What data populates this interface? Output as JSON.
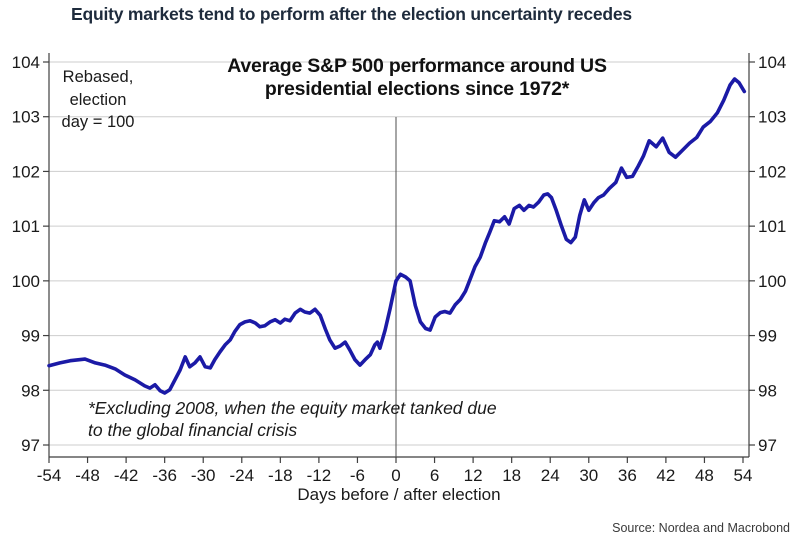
{
  "page": {
    "headline": "Equity markets tend to perform after the election uncertainty recedes",
    "source": "Source: Nordea and Macrobond"
  },
  "chart_data": {
    "type": "line",
    "title": "Average S&P 500 performance around US presidential elections since 1972*",
    "title_line1": "Average S&P 500 performance around US",
    "title_line2": "presidential elections since 1972*",
    "rebased_note_line1": "Rebased,",
    "rebased_note_line2": "election",
    "rebased_note_line3": "day = 100",
    "footnote_line1": "*Excluding 2008, when the equity market tanked due",
    "footnote_line2": "to the global financial crisis",
    "xlabel": "Days before / after election",
    "ylabel": "",
    "x_ticks": [
      -54,
      -48,
      -42,
      -36,
      -30,
      -24,
      -18,
      -12,
      -6,
      0,
      6,
      12,
      18,
      24,
      30,
      36,
      42,
      48,
      54
    ],
    "y_ticks": [
      97,
      98,
      99,
      100,
      101,
      102,
      103,
      104
    ],
    "xlim": [
      -54,
      55
    ],
    "ylim": [
      96.8,
      104.16
    ],
    "grid": true,
    "legend_position": "none",
    "line_color": "#1b1aa6",
    "election_day_x": 0,
    "series": [
      {
        "name": "Average S&P 500 performance (rebased, election day = 100)",
        "points": [
          [
            -54,
            98.45
          ],
          [
            -52.3,
            98.5
          ],
          [
            -50.7,
            98.54
          ],
          [
            -48.4,
            98.57
          ],
          [
            -46.8,
            98.5
          ],
          [
            -45.3,
            98.46
          ],
          [
            -43.7,
            98.39
          ],
          [
            -42.2,
            98.28
          ],
          [
            -40.6,
            98.19
          ],
          [
            -39.1,
            98.08
          ],
          [
            -38.3,
            98.04
          ],
          [
            -37.5,
            98.1
          ],
          [
            -36.7,
            97.99
          ],
          [
            -36,
            97.95
          ],
          [
            -35.2,
            98.01
          ],
          [
            -34.4,
            98.19
          ],
          [
            -33.6,
            98.37
          ],
          [
            -32.8,
            98.61
          ],
          [
            -32.1,
            98.43
          ],
          [
            -31.3,
            98.5
          ],
          [
            -30.5,
            98.61
          ],
          [
            -29.7,
            98.43
          ],
          [
            -28.9,
            98.41
          ],
          [
            -28.2,
            98.56
          ],
          [
            -27.4,
            98.7
          ],
          [
            -26.6,
            98.83
          ],
          [
            -25.8,
            98.92
          ],
          [
            -25.1,
            99.07
          ],
          [
            -24.3,
            99.2
          ],
          [
            -23.5,
            99.25
          ],
          [
            -22.7,
            99.27
          ],
          [
            -21.9,
            99.23
          ],
          [
            -21.2,
            99.16
          ],
          [
            -20.4,
            99.18
          ],
          [
            -19.6,
            99.25
          ],
          [
            -18.8,
            99.29
          ],
          [
            -18,
            99.23
          ],
          [
            -17.3,
            99.3
          ],
          [
            -16.5,
            99.27
          ],
          [
            -15.7,
            99.41
          ],
          [
            -14.9,
            99.48
          ],
          [
            -14.2,
            99.43
          ],
          [
            -13.4,
            99.41
          ],
          [
            -12.6,
            99.48
          ],
          [
            -11.8,
            99.37
          ],
          [
            -11,
            99.12
          ],
          [
            -10.3,
            98.92
          ],
          [
            -9.5,
            98.77
          ],
          [
            -8.7,
            98.81
          ],
          [
            -7.9,
            98.88
          ],
          [
            -7.2,
            98.74
          ],
          [
            -6.4,
            98.56
          ],
          [
            -5.6,
            98.46
          ],
          [
            -4.8,
            98.56
          ],
          [
            -4,
            98.65
          ],
          [
            -3.3,
            98.83
          ],
          [
            -2.9,
            98.88
          ],
          [
            -2.5,
            98.77
          ],
          [
            -1.7,
            99.1
          ],
          [
            -0.9,
            99.5
          ],
          [
            0,
            100.0
          ],
          [
            0.7,
            100.12
          ],
          [
            1.5,
            100.07
          ],
          [
            2.2,
            100.0
          ],
          [
            3,
            99.55
          ],
          [
            3.8,
            99.25
          ],
          [
            4.6,
            99.13
          ],
          [
            5.3,
            99.1
          ],
          [
            6.1,
            99.34
          ],
          [
            6.9,
            99.42
          ],
          [
            7.6,
            99.44
          ],
          [
            8.4,
            99.41
          ],
          [
            9.2,
            99.56
          ],
          [
            10,
            99.66
          ],
          [
            10.8,
            99.81
          ],
          [
            11.5,
            100.02
          ],
          [
            12.3,
            100.26
          ],
          [
            13.1,
            100.43
          ],
          [
            13.9,
            100.69
          ],
          [
            14.6,
            100.89
          ],
          [
            15.3,
            101.1
          ],
          [
            16.1,
            101.08
          ],
          [
            16.9,
            101.17
          ],
          [
            17.6,
            101.04
          ],
          [
            18.4,
            101.32
          ],
          [
            19.2,
            101.38
          ],
          [
            19.9,
            101.29
          ],
          [
            20.7,
            101.38
          ],
          [
            21.4,
            101.35
          ],
          [
            22.2,
            101.44
          ],
          [
            23,
            101.57
          ],
          [
            23.6,
            101.59
          ],
          [
            24.2,
            101.52
          ],
          [
            24.9,
            101.3
          ],
          [
            25.7,
            101.02
          ],
          [
            26.5,
            100.76
          ],
          [
            27.2,
            100.7
          ],
          [
            27.9,
            100.8
          ],
          [
            28.6,
            101.2
          ],
          [
            29.3,
            101.48
          ],
          [
            30,
            101.29
          ],
          [
            30.8,
            101.43
          ],
          [
            31.5,
            101.52
          ],
          [
            32.3,
            101.57
          ],
          [
            33.2,
            101.69
          ],
          [
            34.2,
            101.8
          ],
          [
            35.1,
            102.06
          ],
          [
            35.9,
            101.89
          ],
          [
            36.8,
            101.91
          ],
          [
            37.7,
            102.1
          ],
          [
            38.5,
            102.28
          ],
          [
            39.4,
            102.56
          ],
          [
            40.5,
            102.45
          ],
          [
            41.5,
            102.61
          ],
          [
            42.5,
            102.35
          ],
          [
            43.5,
            102.26
          ],
          [
            44.6,
            102.39
          ],
          [
            45.7,
            102.52
          ],
          [
            46.8,
            102.62
          ],
          [
            47.8,
            102.81
          ],
          [
            48.9,
            102.91
          ],
          [
            50,
            103.07
          ],
          [
            51,
            103.3
          ],
          [
            52,
            103.58
          ],
          [
            52.7,
            103.69
          ],
          [
            53.4,
            103.62
          ],
          [
            54.2,
            103.46
          ]
        ]
      }
    ]
  }
}
